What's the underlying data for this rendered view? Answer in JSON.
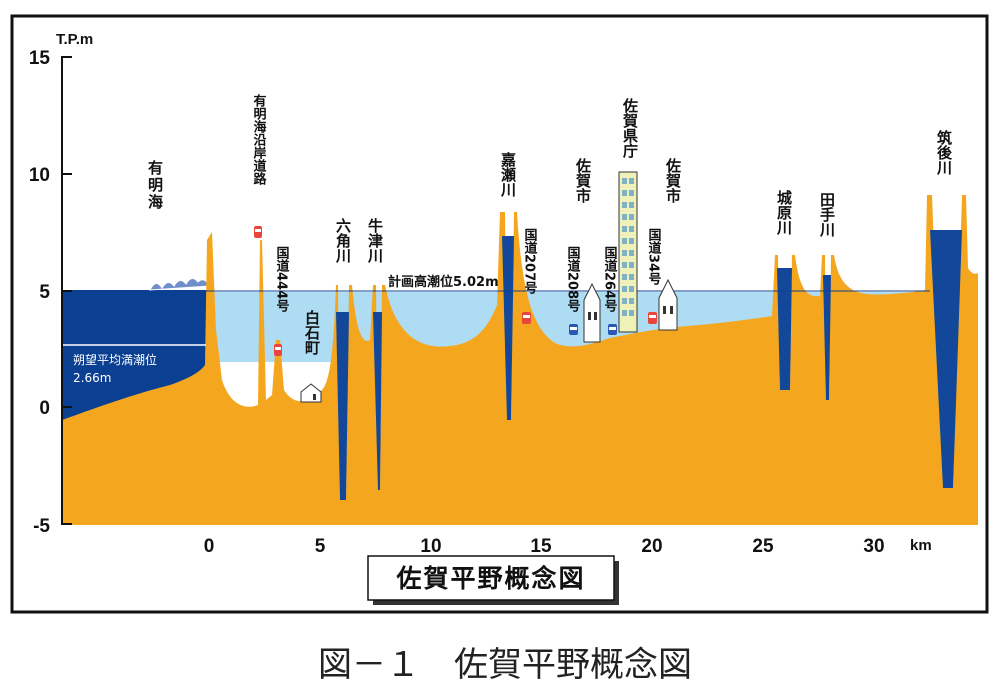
{
  "axis": {
    "unit_y": "T.P.m",
    "unit_x": "km",
    "y_ticks": [
      "15",
      "10",
      "5",
      "0",
      "-5"
    ],
    "x_ticks": [
      "0",
      "5",
      "10",
      "15",
      "20",
      "25",
      "30"
    ]
  },
  "labels": {
    "sea": "有明海",
    "coastal_road": "有明海沿岸道路",
    "route444": "国道444号",
    "shiroishi": "白石町",
    "rokkaku": "六角川",
    "ushizu": "牛津川",
    "plan_tide": "計画高潮位5.02m",
    "kase": "嘉瀬川",
    "route207": "国道207号",
    "route208": "国道208号",
    "saga_city_1": "佐賀市",
    "route264": "国道264号",
    "pref_office": "佐賀県庁",
    "saga_city_2": "佐賀市",
    "route34": "国道34号",
    "jobaru": "城原川",
    "tade": "田手川",
    "chikugo": "筑後川",
    "mean_tide_line1": "朔望平均満潮位",
    "mean_tide_line2": "2.66m"
  },
  "title_box": "佐賀平野概念図",
  "caption": "図－１　佐賀平野概念図",
  "colors": {
    "ground": "#F4A71E",
    "sea": "#0B3F91",
    "flood": "#AEDCF2",
    "river": "#13479A"
  }
}
